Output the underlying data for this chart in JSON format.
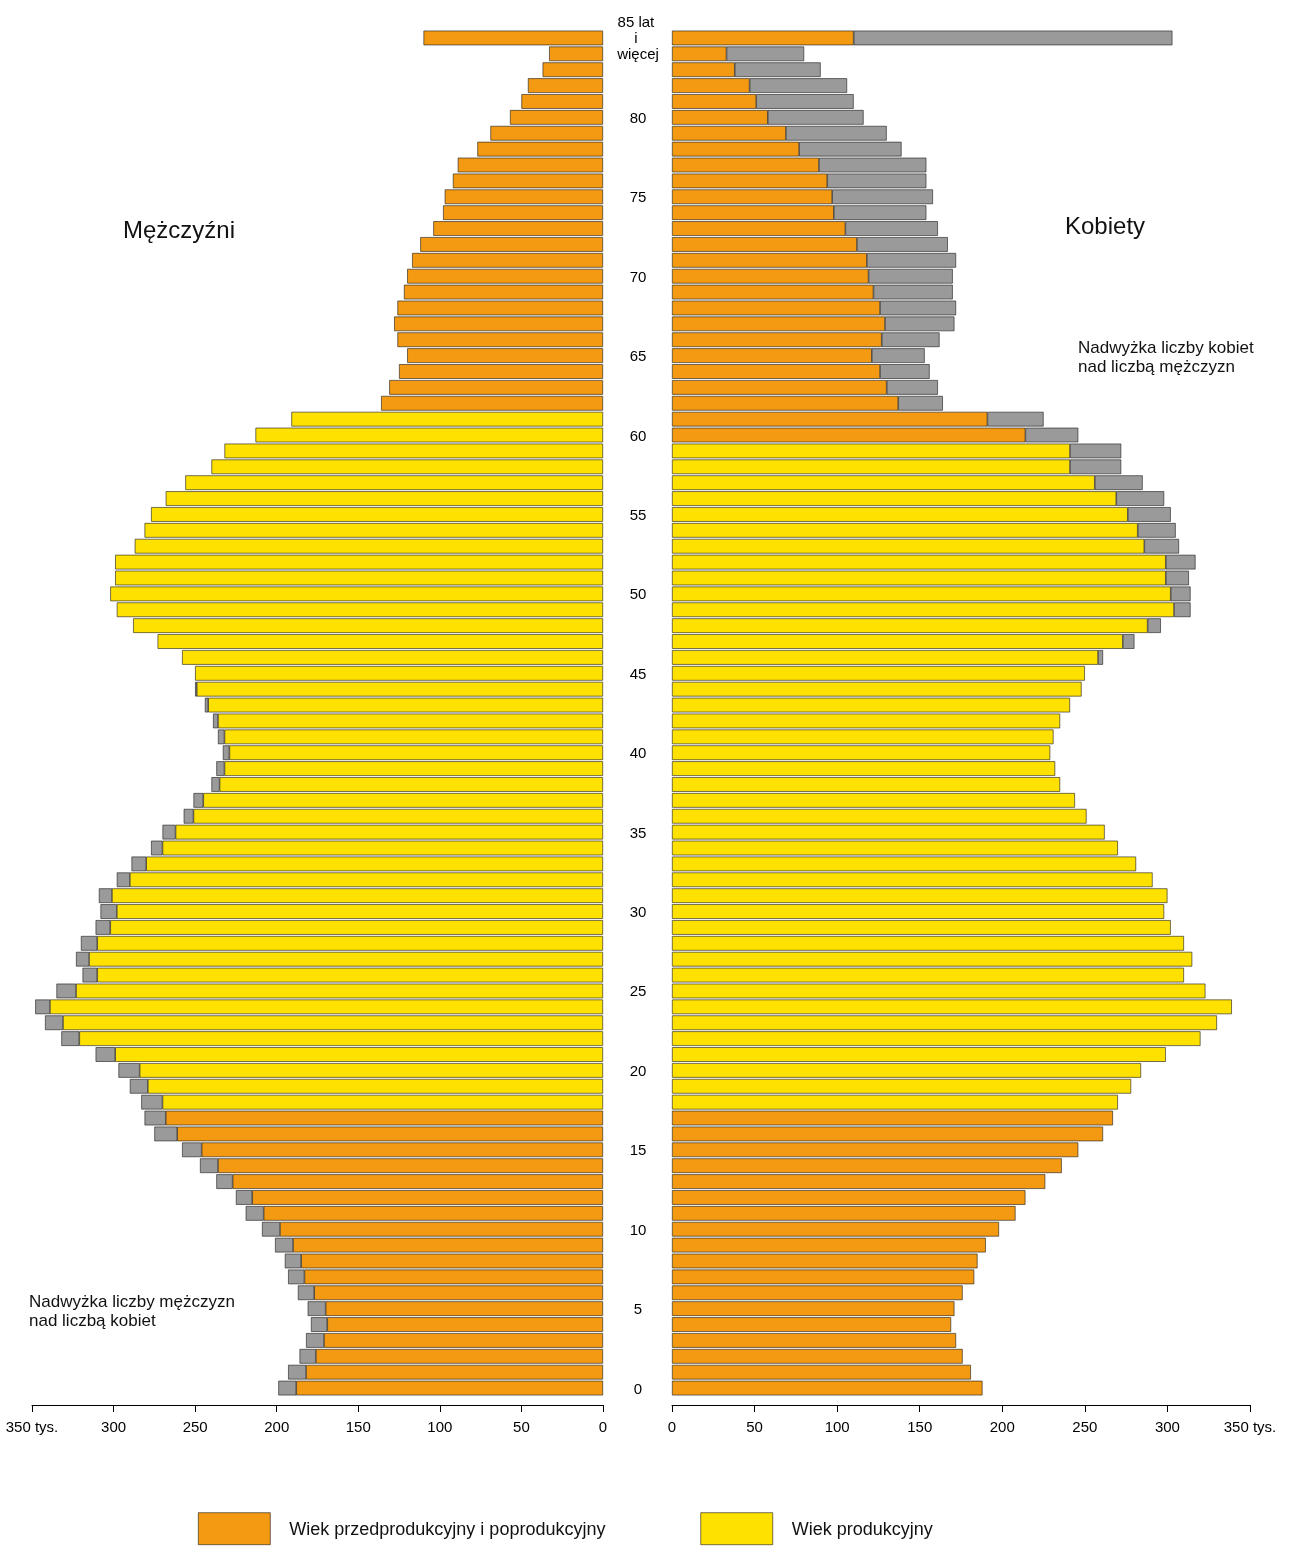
{
  "chart_data": [
    {
      "type": "bar",
      "orientation": "horizontal",
      "stacked": true,
      "title": "Mężczyźni",
      "annotations": [
        "Nadwyżka liczby mężczyzn nad liczbą kobiet"
      ],
      "categories": [
        "85 lat i więcej",
        null,
        null,
        null,
        null,
        "80",
        null,
        null,
        null,
        null,
        "75",
        null,
        null,
        null,
        null,
        "70",
        null,
        null,
        null,
        null,
        "65",
        null,
        null,
        null,
        null,
        "60",
        null,
        null,
        null,
        null,
        "55",
        null,
        null,
        null,
        null,
        "50",
        null,
        null,
        null,
        null,
        "45",
        null,
        null,
        null,
        null,
        "40",
        null,
        null,
        null,
        null,
        "35",
        null,
        null,
        null,
        null,
        "30",
        null,
        null,
        null,
        null,
        "25",
        null,
        null,
        null,
        null,
        "20",
        null,
        null,
        null,
        null,
        "15",
        null,
        null,
        null,
        null,
        "10",
        null,
        null,
        null,
        null,
        "5",
        null,
        null,
        null,
        null,
        "0"
      ],
      "series": [
        {
          "name": "Wiek przedprodukcyjny i poprodukcyjny",
          "color": "#f39a12",
          "values": [
            110,
            33,
            37,
            46,
            50,
            57,
            69,
            77,
            89,
            92,
            97,
            98,
            104,
            112,
            117,
            120,
            122,
            126,
            128,
            126,
            120,
            125,
            131,
            136,
            null,
            null,
            null,
            null,
            null,
            null,
            null,
            null,
            null,
            null,
            null,
            null,
            null,
            null,
            null,
            null,
            null,
            null,
            null,
            null,
            null,
            null,
            null,
            null,
            null,
            null,
            null,
            null,
            null,
            null,
            null,
            null,
            null,
            null,
            null,
            null,
            null,
            null,
            null,
            null,
            null,
            null,
            null,
            null,
            268,
            261,
            246,
            236,
            227,
            215,
            208,
            198,
            190,
            185,
            183,
            177,
            170,
            169,
            171,
            176,
            182,
            188
          ]
        },
        {
          "name": "Wiek produkcyjny",
          "color": "#ffe100",
          "values": [
            null,
            null,
            null,
            null,
            null,
            null,
            null,
            null,
            null,
            null,
            null,
            null,
            null,
            null,
            null,
            null,
            null,
            null,
            null,
            null,
            null,
            null,
            null,
            null,
            191,
            213,
            232,
            240,
            256,
            268,
            277,
            281,
            287,
            299,
            299,
            302,
            298,
            288,
            273,
            258,
            250,
            249,
            242,
            236,
            232,
            229,
            232,
            235,
            245,
            251,
            262,
            270,
            280,
            290,
            301,
            298,
            302,
            310,
            315,
            310,
            323,
            339,
            331,
            321,
            299,
            284,
            279,
            270,
            null,
            null,
            null,
            null,
            null,
            null,
            null,
            null,
            null,
            null,
            null,
            null,
            null,
            null,
            null,
            null,
            null,
            null
          ]
        },
        {
          "color": "#9a9a9a",
          "values": [
            null,
            null,
            null,
            null,
            null,
            null,
            null,
            null,
            null,
            null,
            null,
            null,
            null,
            null,
            null,
            null,
            null,
            null,
            null,
            null,
            null,
            null,
            null,
            null,
            null,
            null,
            null,
            null,
            null,
            null,
            null,
            null,
            null,
            null,
            null,
            null,
            null,
            null,
            null,
            null,
            null,
            1,
            2,
            3,
            4,
            4,
            5,
            5,
            6,
            6,
            8,
            7,
            9,
            8,
            8,
            10,
            9,
            10,
            8,
            9,
            12,
            9,
            11,
            11,
            12,
            13,
            11,
            13,
            13,
            14,
            12,
            11,
            10,
            10,
            11,
            11,
            11,
            10,
            10,
            10,
            11,
            10,
            11,
            10,
            11,
            11
          ]
        }
      ],
      "xlim": [
        350,
        0
      ],
      "xticks": [
        {
          "value": 350,
          "label": "350 tys."
        },
        300,
        250,
        200,
        150,
        100,
        50,
        0
      ],
      "legend": "bottom",
      "tick_labels": "x"
    },
    {
      "type": "bar",
      "orientation": "horizontal",
      "stacked": true,
      "title": "Kobiety",
      "annotations": [
        "Nadwyżka liczby kobiet nad liczbą mężczyzn"
      ],
      "categories": [
        "85 lat i więcej",
        null,
        null,
        null,
        null,
        "80",
        null,
        null,
        null,
        null,
        "75",
        null,
        null,
        null,
        null,
        "70",
        null,
        null,
        null,
        null,
        "65",
        null,
        null,
        null,
        null,
        "60",
        null,
        null,
        null,
        null,
        "55",
        null,
        null,
        null,
        null,
        "50",
        null,
        null,
        null,
        null,
        "45",
        null,
        null,
        null,
        null,
        "40",
        null,
        null,
        null,
        null,
        "35",
        null,
        null,
        null,
        null,
        "30",
        null,
        null,
        null,
        null,
        "25",
        null,
        null,
        null,
        null,
        "20",
        null,
        null,
        null,
        null,
        "15",
        null,
        null,
        null,
        null,
        "10",
        null,
        null,
        null,
        null,
        "5",
        null,
        null,
        null,
        null,
        "0"
      ],
      "series": [
        {
          "color": "#f39a12",
          "values": [
            110,
            33,
            38,
            47,
            51,
            58,
            69,
            77,
            89,
            94,
            97,
            98,
            105,
            112,
            118,
            119,
            122,
            126,
            129,
            127,
            121,
            126,
            130,
            137,
            191,
            214,
            null,
            null,
            null,
            null,
            null,
            null,
            null,
            null,
            null,
            null,
            null,
            null,
            null,
            null,
            null,
            null,
            null,
            null,
            null,
            null,
            null,
            null,
            null,
            null,
            null,
            null,
            null,
            null,
            null,
            null,
            null,
            null,
            null,
            null,
            null,
            null,
            null,
            null,
            null,
            null,
            null,
            null,
            267,
            261,
            246,
            236,
            226,
            214,
            208,
            198,
            190,
            185,
            183,
            176,
            171,
            169,
            172,
            176,
            181,
            188
          ]
        },
        {
          "color": "#ffe100",
          "values": [
            null,
            null,
            null,
            null,
            null,
            null,
            null,
            null,
            null,
            null,
            null,
            null,
            null,
            null,
            null,
            null,
            null,
            null,
            null,
            null,
            null,
            null,
            null,
            null,
            null,
            null,
            241,
            241,
            256,
            269,
            276,
            282,
            286,
            299,
            299,
            302,
            304,
            288,
            273,
            258,
            250,
            248,
            241,
            235,
            231,
            229,
            232,
            235,
            244,
            251,
            262,
            270,
            281,
            291,
            300,
            298,
            302,
            310,
            315,
            310,
            323,
            339,
            330,
            320,
            299,
            284,
            278,
            270,
            null,
            null,
            null,
            null,
            null,
            null,
            null,
            null,
            null,
            null,
            null,
            null,
            null,
            null,
            null,
            null,
            null,
            null
          ]
        },
        {
          "color": "#9a9a9a",
          "values": [
            193,
            47,
            52,
            59,
            59,
            58,
            61,
            62,
            65,
            60,
            61,
            56,
            56,
            55,
            54,
            51,
            48,
            46,
            42,
            35,
            32,
            30,
            31,
            27,
            34,
            32,
            31,
            31,
            29,
            29,
            26,
            23,
            21,
            18,
            14,
            12,
            10,
            8,
            7,
            3,
            null,
            null,
            null,
            null,
            null,
            null,
            null,
            null,
            null,
            null,
            null,
            null,
            null,
            null,
            null,
            null,
            null,
            null,
            null,
            null,
            null,
            null,
            null,
            null,
            null,
            null,
            null,
            null,
            null,
            null,
            null,
            null,
            null,
            null,
            null,
            null,
            null,
            null,
            null,
            null,
            null,
            null,
            null,
            null,
            null,
            null
          ]
        }
      ],
      "xlim": [
        0,
        350
      ],
      "xticks": [
        0,
        50,
        100,
        150,
        200,
        250,
        300,
        {
          "value": 350,
          "label": "350 tys."
        }
      ]
    }
  ]
}
